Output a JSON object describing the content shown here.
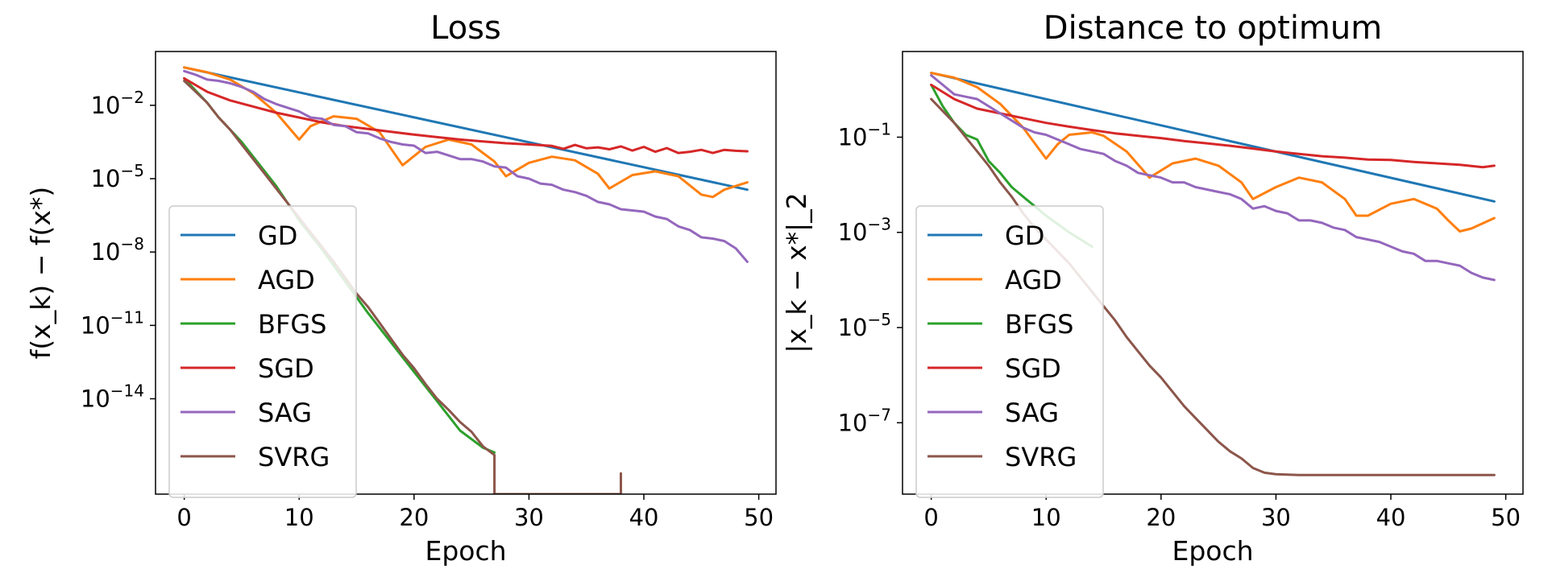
{
  "chart_data": [
    {
      "type": "line",
      "title": "Loss",
      "xlabel": "Epoch",
      "ylabel": "f(x_k) − f(x*)",
      "yscale": "log",
      "xlim": [
        -2.5,
        51.5
      ],
      "ylim_exp": [
        -17.9,
        0.2
      ],
      "xticks": [
        0,
        10,
        20,
        30,
        40,
        50
      ],
      "yticks": [
        {
          "exp": -2,
          "base": "10",
          "power": "−2"
        },
        {
          "exp": -5,
          "base": "10",
          "power": "−5"
        },
        {
          "exp": -8,
          "base": "10",
          "power": "−8"
        },
        {
          "exp": -11,
          "base": "10",
          "power": "−11"
        },
        {
          "exp": -14,
          "base": "10",
          "power": "−14"
        }
      ],
      "legend_position": "lower-left",
      "series": [
        {
          "name": "GD",
          "color": "#1f77b4",
          "x": [
            0,
            49
          ],
          "y_log10": [
            -0.45,
            -5.45
          ]
        },
        {
          "name": "AGD",
          "color": "#ff7f0e",
          "x": [
            0,
            2,
            4,
            6,
            8,
            10,
            11,
            13,
            15,
            17,
            19,
            21,
            23,
            25,
            27,
            28,
            30,
            32,
            34,
            36,
            37,
            39,
            41,
            43,
            45,
            46,
            47,
            49
          ],
          "y_log10": [
            -0.45,
            -0.65,
            -0.95,
            -1.5,
            -2.3,
            -3.4,
            -2.85,
            -2.45,
            -2.55,
            -3.1,
            -4.45,
            -3.7,
            -3.4,
            -3.6,
            -4.3,
            -4.9,
            -4.35,
            -4.1,
            -4.25,
            -4.8,
            -5.4,
            -4.85,
            -4.7,
            -4.9,
            -5.65,
            -5.75,
            -5.45,
            -5.15
          ]
        },
        {
          "name": "BFGS",
          "color": "#2ca02c",
          "x": [
            0,
            1,
            2,
            3,
            4,
            5,
            6,
            7,
            8,
            9,
            10,
            12,
            14,
            16,
            18,
            20,
            22,
            24,
            26,
            27
          ],
          "y_log10": [
            -0.9,
            -1.4,
            -1.9,
            -2.5,
            -3.0,
            -3.5,
            -4.1,
            -4.7,
            -5.3,
            -6.0,
            -6.7,
            -7.9,
            -9.2,
            -10.5,
            -11.7,
            -12.9,
            -14.1,
            -15.3,
            -16.0,
            -16.2
          ]
        },
        {
          "name": "SGD",
          "color": "#d62728",
          "x": [
            0,
            2,
            4,
            6,
            8,
            10,
            12,
            14,
            16,
            18,
            20,
            22,
            24,
            26,
            28,
            30,
            32,
            33,
            34,
            35,
            36,
            37,
            38,
            39,
            40,
            41,
            42,
            43,
            44,
            45,
            46,
            47,
            48,
            49
          ],
          "y_log10": [
            -0.9,
            -1.45,
            -1.8,
            -2.05,
            -2.3,
            -2.5,
            -2.7,
            -2.85,
            -2.97,
            -3.08,
            -3.2,
            -3.3,
            -3.4,
            -3.48,
            -3.55,
            -3.6,
            -3.66,
            -3.78,
            -3.62,
            -3.76,
            -3.72,
            -3.8,
            -3.68,
            -3.85,
            -3.7,
            -3.9,
            -3.75,
            -3.95,
            -3.9,
            -3.82,
            -3.95,
            -3.82,
            -3.86,
            -3.88
          ]
        },
        {
          "name": "SAG",
          "color": "#9467bd",
          "x": [
            0,
            1,
            2,
            3,
            4,
            5,
            6,
            7,
            8,
            9,
            10,
            11,
            12,
            13,
            14,
            15,
            16,
            17,
            18,
            19,
            20,
            21,
            22,
            23,
            24,
            25,
            26,
            27,
            28,
            29,
            30,
            31,
            32,
            33,
            34,
            35,
            36,
            37,
            38,
            39,
            40,
            41,
            42,
            43,
            44,
            45,
            46,
            47,
            48,
            49
          ],
          "y_log10": [
            -0.6,
            -0.75,
            -0.95,
            -1.0,
            -1.1,
            -1.25,
            -1.45,
            -1.75,
            -1.95,
            -2.1,
            -2.25,
            -2.5,
            -2.55,
            -2.8,
            -2.85,
            -3.1,
            -3.15,
            -3.35,
            -3.5,
            -3.6,
            -3.65,
            -3.95,
            -3.9,
            -4.05,
            -4.2,
            -4.2,
            -4.3,
            -4.5,
            -4.55,
            -4.9,
            -5.0,
            -5.2,
            -5.25,
            -5.45,
            -5.55,
            -5.7,
            -5.95,
            -6.05,
            -6.25,
            -6.3,
            -6.35,
            -6.55,
            -6.65,
            -6.95,
            -7.1,
            -7.4,
            -7.45,
            -7.55,
            -7.85,
            -8.4
          ]
        },
        {
          "name": "SVRG",
          "color": "#8c564b",
          "x": [
            0,
            1,
            2,
            3,
            4,
            5,
            6,
            7,
            8,
            9,
            10,
            11,
            12,
            13,
            14,
            15,
            16,
            17,
            18,
            19,
            20,
            21,
            22,
            23,
            24,
            25,
            26,
            27,
            27,
            27,
            38,
            38,
            38,
            38
          ],
          "y_log10": [
            -1.0,
            -1.45,
            -1.9,
            -2.5,
            -3.0,
            -3.6,
            -4.2,
            -4.8,
            -5.4,
            -6.0,
            -6.6,
            -7.2,
            -7.8,
            -8.4,
            -9.05,
            -9.7,
            -10.25,
            -10.9,
            -11.55,
            -12.2,
            -12.75,
            -13.4,
            -14.0,
            -14.45,
            -14.95,
            -15.35,
            -15.95,
            -16.3,
            -17.0,
            -17.9,
            -17.9,
            -17.05,
            -17.9,
            -17.9
          ]
        }
      ]
    },
    {
      "type": "line",
      "title": "Distance to optimum",
      "xlabel": "Epoch",
      "ylabel": "|x_k − x*|_2",
      "yscale": "log",
      "xlim": [
        -2.5,
        51.5
      ],
      "ylim_exp": [
        -8.5,
        0.8
      ],
      "xticks": [
        0,
        10,
        20,
        30,
        40,
        50
      ],
      "yticks": [
        {
          "exp": -1,
          "base": "10",
          "power": "−1"
        },
        {
          "exp": -3,
          "base": "10",
          "power": "−3"
        },
        {
          "exp": -5,
          "base": "10",
          "power": "−5"
        },
        {
          "exp": -7,
          "base": "10",
          "power": "−7"
        }
      ],
      "legend_position": "lower-left",
      "series": [
        {
          "name": "GD",
          "color": "#1f77b4",
          "x": [
            0,
            49
          ],
          "y_log10": [
            0.35,
            -2.35
          ]
        },
        {
          "name": "AGD",
          "color": "#ff7f0e",
          "x": [
            0,
            2,
            4,
            6,
            8,
            10,
            11,
            12,
            14,
            15,
            17,
            19,
            21,
            23,
            25,
            27,
            28,
            30,
            32,
            34,
            36,
            37,
            38,
            40,
            42,
            44,
            45,
            46,
            47,
            49
          ],
          "y_log10": [
            0.35,
            0.25,
            0.05,
            -0.3,
            -0.8,
            -1.45,
            -1.15,
            -0.95,
            -0.9,
            -0.97,
            -1.3,
            -1.85,
            -1.55,
            -1.45,
            -1.6,
            -1.95,
            -2.3,
            -2.05,
            -1.85,
            -1.95,
            -2.3,
            -2.65,
            -2.65,
            -2.4,
            -2.3,
            -2.5,
            -2.75,
            -2.98,
            -2.92,
            -2.7
          ]
        },
        {
          "name": "BFGS",
          "color": "#2ca02c",
          "x": [
            0,
            1,
            2,
            3,
            4,
            5,
            6,
            7,
            8,
            9,
            10,
            12,
            14
          ],
          "y_log10": [
            0.1,
            -0.35,
            -0.7,
            -0.95,
            -1.05,
            -1.5,
            -1.75,
            -2.05,
            -2.25,
            -2.45,
            -2.65,
            -3.0,
            -3.3
          ]
        },
        {
          "name": "SGD",
          "color": "#d62728",
          "x": [
            0,
            2,
            4,
            6,
            8,
            10,
            12,
            14,
            16,
            18,
            20,
            22,
            24,
            26,
            28,
            30,
            32,
            34,
            36,
            38,
            40,
            42,
            44,
            46,
            48,
            49
          ],
          "y_log10": [
            0.1,
            -0.2,
            -0.4,
            -0.5,
            -0.6,
            -0.7,
            -0.78,
            -0.85,
            -0.92,
            -0.97,
            -1.02,
            -1.08,
            -1.13,
            -1.18,
            -1.24,
            -1.3,
            -1.35,
            -1.4,
            -1.43,
            -1.47,
            -1.48,
            -1.52,
            -1.55,
            -1.58,
            -1.63,
            -1.6
          ]
        },
        {
          "name": "SAG",
          "color": "#9467bd",
          "x": [
            0,
            1,
            2,
            3,
            4,
            5,
            6,
            7,
            8,
            9,
            10,
            11,
            12,
            13,
            14,
            15,
            16,
            17,
            18,
            19,
            20,
            21,
            22,
            23,
            24,
            25,
            26,
            27,
            28,
            29,
            30,
            31,
            32,
            33,
            34,
            35,
            36,
            37,
            38,
            39,
            40,
            41,
            42,
            43,
            44,
            45,
            46,
            47,
            48,
            49
          ],
          "y_log10": [
            0.3,
            0.1,
            -0.1,
            -0.15,
            -0.2,
            -0.35,
            -0.5,
            -0.65,
            -0.8,
            -0.9,
            -0.95,
            -1.05,
            -1.15,
            -1.25,
            -1.3,
            -1.35,
            -1.5,
            -1.6,
            -1.75,
            -1.8,
            -1.85,
            -1.95,
            -1.95,
            -2.05,
            -2.1,
            -2.15,
            -2.2,
            -2.3,
            -2.5,
            -2.45,
            -2.55,
            -2.6,
            -2.75,
            -2.75,
            -2.8,
            -2.9,
            -2.95,
            -3.1,
            -3.15,
            -3.2,
            -3.3,
            -3.4,
            -3.45,
            -3.6,
            -3.6,
            -3.65,
            -3.7,
            -3.85,
            -3.95,
            -4.0
          ]
        },
        {
          "name": "SVRG",
          "color": "#8c564b",
          "x": [
            0,
            1,
            2,
            3,
            4,
            5,
            6,
            7,
            8,
            9,
            10,
            11,
            12,
            13,
            14,
            15,
            16,
            17,
            18,
            19,
            20,
            21,
            22,
            23,
            24,
            25,
            26,
            27,
            28,
            29,
            30,
            32,
            35,
            40,
            45,
            49
          ],
          "y_log10": [
            -0.2,
            -0.45,
            -0.7,
            -1.0,
            -1.3,
            -1.6,
            -1.95,
            -2.25,
            -2.6,
            -2.9,
            -3.15,
            -3.4,
            -3.65,
            -3.95,
            -4.25,
            -4.55,
            -4.85,
            -5.2,
            -5.5,
            -5.8,
            -6.05,
            -6.35,
            -6.65,
            -6.9,
            -7.15,
            -7.4,
            -7.6,
            -7.75,
            -7.95,
            -8.05,
            -8.08,
            -8.1,
            -8.1,
            -8.1,
            -8.1,
            -8.1
          ]
        }
      ]
    }
  ]
}
